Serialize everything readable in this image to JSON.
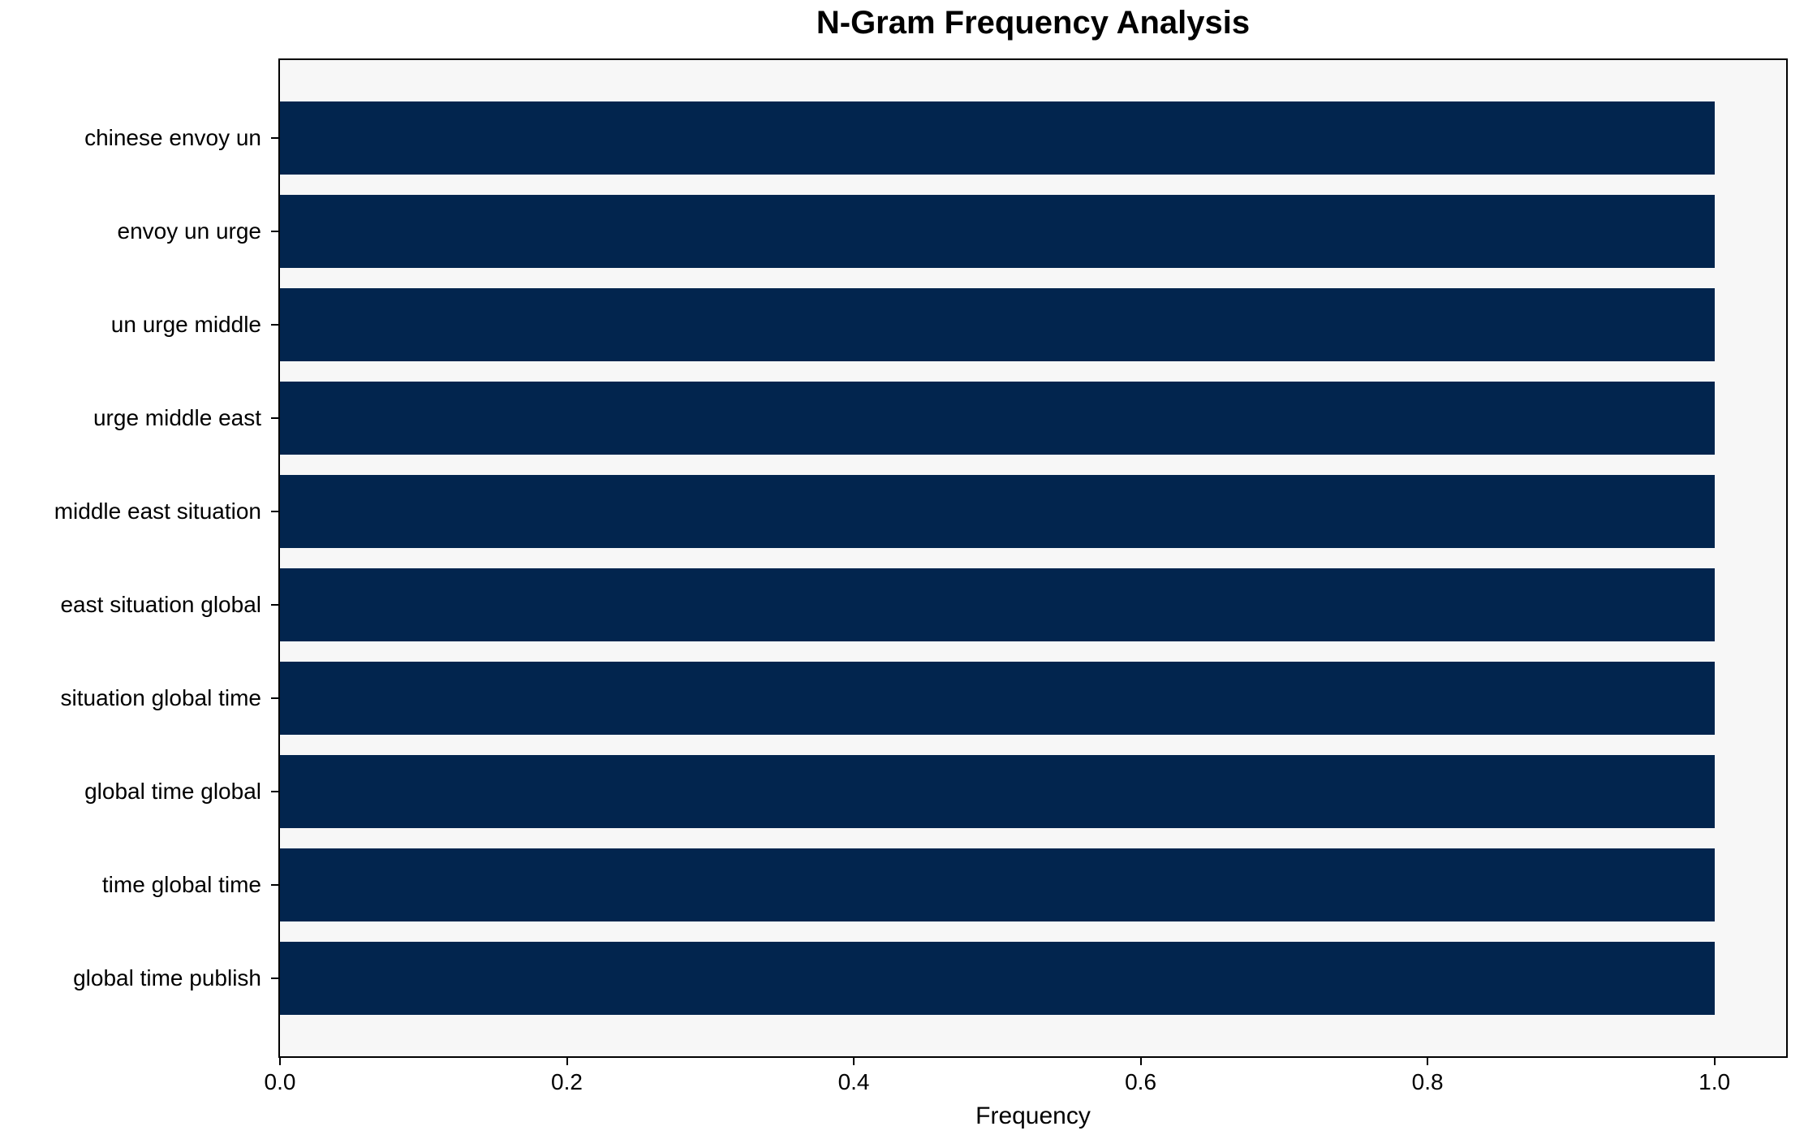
{
  "chart_data": {
    "type": "bar",
    "orientation": "horizontal",
    "title": "N-Gram Frequency Analysis",
    "xlabel": "Frequency",
    "ylabel": "",
    "categories": [
      "chinese envoy un",
      "envoy un urge",
      "un urge middle",
      "urge middle east",
      "middle east situation",
      "east situation global",
      "situation global time",
      "global time global",
      "time global time",
      "global time publish"
    ],
    "values": [
      1.0,
      1.0,
      1.0,
      1.0,
      1.0,
      1.0,
      1.0,
      1.0,
      1.0,
      1.0
    ],
    "xlim": [
      0,
      1.05
    ],
    "xticks": [
      {
        "value": 0.0,
        "label": "0.0"
      },
      {
        "value": 0.2,
        "label": "0.2"
      },
      {
        "value": 0.4,
        "label": "0.4"
      },
      {
        "value": 0.6,
        "label": "0.6"
      },
      {
        "value": 0.8,
        "label": "0.8"
      },
      {
        "value": 1.0,
        "label": "1.0"
      }
    ],
    "grid": false,
    "legend_position": "none",
    "colors": {
      "bar": "#02254e",
      "plot_background": "#f7f7f7",
      "figure_background": "#ffffff",
      "axis": "#000000",
      "text": "#000000"
    }
  }
}
